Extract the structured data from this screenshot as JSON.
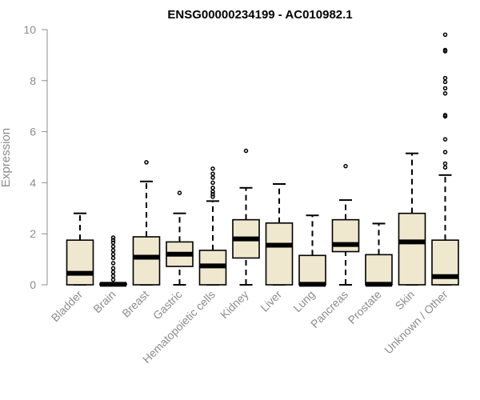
{
  "colors": {
    "box_fill": "#efe8cf",
    "box_stroke": "#000000",
    "axis": "#8c8c8c",
    "text": "#8c8c8c"
  },
  "chart_data": {
    "type": "box",
    "title": "ENSG00000234199 - AC010982.1",
    "xlabel": "",
    "ylabel": "Expression",
    "ylim": [
      0,
      10
    ],
    "yticks": [
      0,
      2,
      4,
      6,
      8,
      10
    ],
    "grid": false,
    "categories": [
      "Bladder",
      "Brain",
      "Breast",
      "Gastric",
      "Hematopoietic cells",
      "Kidney",
      "Liver",
      "Lung",
      "Pancreas",
      "Prostate",
      "Skin",
      "Unknown / Other"
    ],
    "boxes": [
      {
        "whisker_low": 0,
        "q1": 0,
        "median": 0.45,
        "q3": 1.75,
        "whisker_high": 2.8,
        "outliers": []
      },
      {
        "whisker_low": 0,
        "q1": 0,
        "median": 0.02,
        "q3": 0.05,
        "whisker_high": 0.05,
        "outliers": [
          0.2,
          0.35,
          0.5,
          0.65,
          0.85,
          1.05,
          1.2,
          1.35,
          1.5,
          1.65,
          1.75,
          1.85
        ]
      },
      {
        "whisker_low": 0,
        "q1": 0,
        "median": 1.08,
        "q3": 1.88,
        "whisker_high": 4.05,
        "outliers": [
          4.8
        ]
      },
      {
        "whisker_low": 0,
        "q1": 0.72,
        "median": 1.2,
        "q3": 1.68,
        "whisker_high": 2.8,
        "outliers": [
          3.6
        ]
      },
      {
        "whisker_low": 0,
        "q1": 0,
        "median": 0.74,
        "q3": 1.35,
        "whisker_high": 3.28,
        "outliers": [
          3.45,
          3.55,
          3.65,
          3.8,
          4.0,
          4.2,
          4.35,
          4.55
        ]
      },
      {
        "whisker_low": 0,
        "q1": 1.05,
        "median": 1.8,
        "q3": 2.55,
        "whisker_high": 3.8,
        "outliers": [
          5.25
        ]
      },
      {
        "whisker_low": 0,
        "q1": 0,
        "median": 1.55,
        "q3": 2.42,
        "whisker_high": 3.95,
        "outliers": []
      },
      {
        "whisker_low": 0,
        "q1": 0,
        "median": 0.02,
        "q3": 1.15,
        "whisker_high": 2.72,
        "outliers": []
      },
      {
        "whisker_low": 0,
        "q1": 1.3,
        "median": 1.58,
        "q3": 2.55,
        "whisker_high": 3.32,
        "outliers": [
          4.65
        ]
      },
      {
        "whisker_low": 0,
        "q1": 0,
        "median": 0.02,
        "q3": 1.18,
        "whisker_high": 2.4,
        "outliers": []
      },
      {
        "whisker_low": 0,
        "q1": 0,
        "median": 1.68,
        "q3": 2.8,
        "whisker_high": 5.15,
        "outliers": []
      },
      {
        "whisker_low": 0,
        "q1": 0,
        "median": 0.32,
        "q3": 1.75,
        "whisker_high": 4.3,
        "outliers": [
          4.6,
          4.75,
          5.2,
          5.7,
          6.6,
          6.65,
          7.5,
          7.7,
          7.95,
          8.1,
          9.15,
          9.2,
          9.8
        ]
      }
    ]
  }
}
